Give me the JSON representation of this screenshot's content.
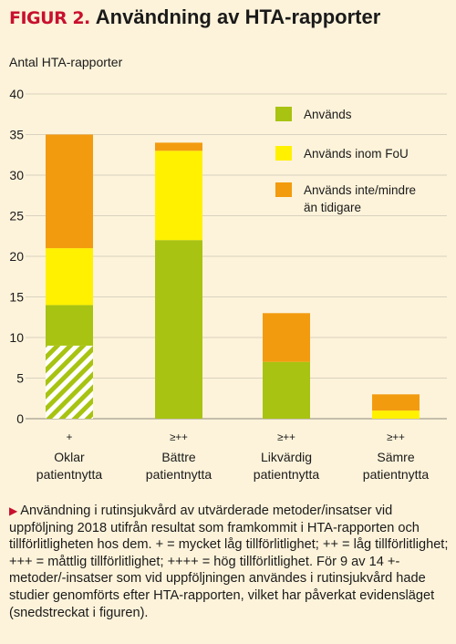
{
  "header": {
    "figure_label": "FIGUR 2.",
    "title": "Användning av HTA-rapporter"
  },
  "caption": {
    "marker": "▶",
    "text": "Användning i rutinsjukvård av utvärderade metoder/insatser vid uppföljning 2018 utifrån resultat som framkommit i HTA-rapporten och tillförlitligheten hos dem. + = mycket låg tillförlitlighet; ++ = låg tillförlitlighet; +++ = måttlig tillförlitlighet; ++++ = hög tillförlitlighet. För 9 av 14 +-metoder/-insatser som vid uppföljningen användes i rutinsjukvård hade studier genomförts efter HTA-rapporten, vilket har påverkat evidensläget (snedstreckat i figuren)."
  },
  "colors": {
    "background": "#fdf3da",
    "green": "#a8c311",
    "yellow": "#fff100",
    "orange": "#f39b0f",
    "hatch_bg": "#ffffff",
    "grid": "#d9d2bf",
    "accent_red": "#c8102e"
  },
  "chart_data": {
    "type": "bar",
    "stacked": true,
    "ylabel": "Antal HTA-rapporter",
    "ylim": [
      0,
      40
    ],
    "yticks": [
      0,
      5,
      10,
      15,
      20,
      25,
      30,
      35,
      40
    ],
    "grid": true,
    "legend_position": "top-right",
    "categories": [
      [
        "Oklar",
        "patientnytta"
      ],
      [
        "Bättre",
        "patientnytta"
      ],
      [
        "Likvärdig",
        "patientnytta"
      ],
      [
        "Sämre",
        "patientnytta"
      ]
    ],
    "reliability": [
      "+",
      "≥++",
      "≥++",
      "≥++"
    ],
    "series": [
      {
        "name": "Används",
        "color": "#a8c311",
        "values": [
          14,
          22,
          7,
          0
        ]
      },
      {
        "name": "Används inom FoU",
        "color": "#fff100",
        "values": [
          7,
          11,
          0,
          1
        ]
      },
      {
        "name": "Används inte/mindre än tidigare",
        "color": "#f39b0f",
        "values": [
          14,
          1,
          6,
          2
        ]
      }
    ],
    "hatched": {
      "category_index": 0,
      "series_index": 0,
      "value": 9
    },
    "legend_labels": [
      [
        "Används"
      ],
      [
        "Används inom FoU"
      ],
      [
        "Används inte/mindre",
        "än tidigare"
      ]
    ]
  }
}
